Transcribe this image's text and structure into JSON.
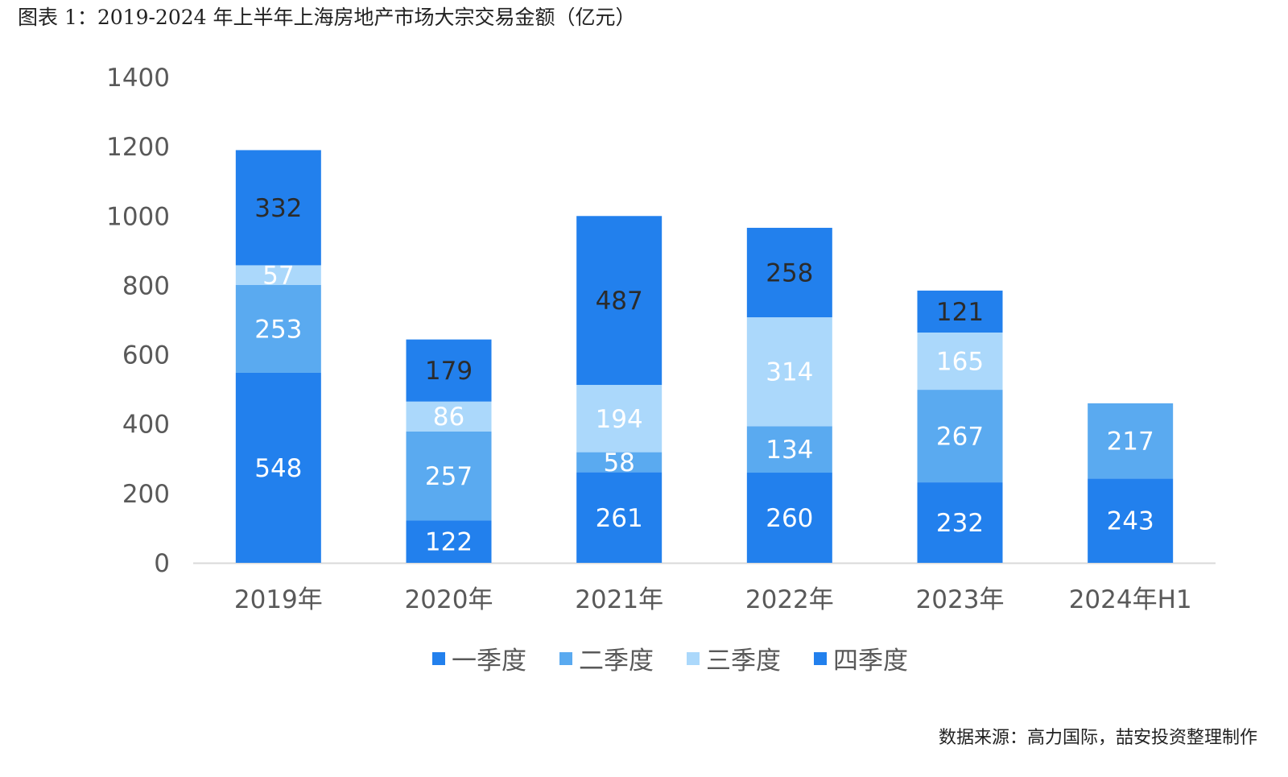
{
  "title": "图表 1：2019-2024 年上半年上海房地产市场大宗交易金额（亿元）",
  "source": "数据来源：高力国际，喆安投资整理制作",
  "chart_data": {
    "type": "bar",
    "stacked": true,
    "categories": [
      "2019年",
      "2020年",
      "2021年",
      "2022年",
      "2023年",
      "2024年H1"
    ],
    "series": [
      {
        "name": "一季度",
        "color": "#2280ed",
        "values": [
          548,
          122,
          261,
          260,
          232,
          243
        ]
      },
      {
        "name": "二季度",
        "color": "#5aaaf0",
        "values": [
          253,
          257,
          58,
          134,
          267,
          217
        ]
      },
      {
        "name": "三季度",
        "color": "#abd8fb",
        "values": [
          57,
          86,
          194,
          314,
          165,
          null
        ]
      },
      {
        "name": "四季度",
        "color": "#2280ed",
        "values": [
          332,
          179,
          487,
          258,
          121,
          null
        ]
      }
    ],
    "ylim": [
      0,
      1400
    ],
    "yticks": [
      0,
      200,
      400,
      600,
      800,
      1000,
      1200,
      1400
    ],
    "grid": false,
    "legend": "bottom"
  }
}
